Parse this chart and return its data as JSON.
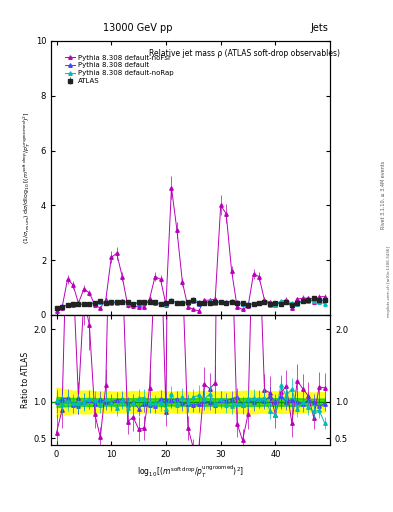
{
  "title_top": "13000 GeV pp",
  "title_right": "Jets",
  "plot_title": "Relative jet mass ρ (ATLAS soft-drop observables)",
  "ylabel_main": "(1/σₛₑₛᵤₘ) dσ/d log₁₀[(mˢᵒᶠᵗʷᵈʳᵒᵖ/pᵀᵘⁿᵏʳᵒᵒᵐᵉᵈ)²]",
  "ylabel_ratio": "Ratio to ATLAS",
  "rivet_label": "Rivet 3.1.10, ≥ 3.4M events",
  "arxiv_label": "mcplots.cern.ch [arXiv:1306.3436]",
  "xmin": -1,
  "xmax": 50,
  "ymin_main": 0.0,
  "ymax_main": 10.0,
  "ymin_ratio": 0.4,
  "ymax_ratio": 2.2,
  "atlas_color": "#222222",
  "default_color": "#4444ff",
  "noFsr_color": "#bb00bb",
  "noRap_color": "#00bbbb",
  "band_yellow": "#ffff00",
  "band_green": "#00cc00",
  "legend_entries": [
    "ATLAS",
    "Pythia 8.308 default",
    "Pythia 8.308 default-noFsr",
    "Pythia 8.308 default-noRap"
  ],
  "xticks": [
    0,
    10,
    20,
    30,
    40
  ],
  "yticks_main": [
    0,
    2,
    4,
    6,
    8,
    10
  ],
  "yticks_ratio": [
    0.5,
    1.0,
    2.0
  ]
}
